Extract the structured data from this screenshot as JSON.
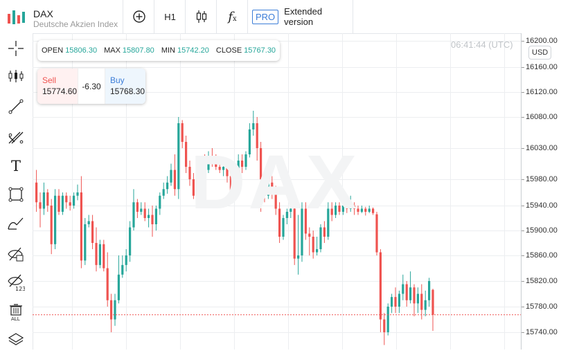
{
  "header": {
    "symbol": "DAX",
    "name": "Deutsche Akzien Index",
    "timeframe": "H1",
    "pro_badge": "PRO",
    "extended_label": "Extended version"
  },
  "ohlc": {
    "open_label": "OPEN",
    "open": "15806.30",
    "max_label": "MAX",
    "max": "15807.80",
    "min_label": "MIN",
    "min": "15742.20",
    "close_label": "CLOSE",
    "close": "15767.30"
  },
  "trade": {
    "sell_label": "Sell",
    "sell_price": "15774.60",
    "spread": "-6.30",
    "buy_label": "Buy",
    "buy_price": "15768.30"
  },
  "time": "06:41:44 (UTC)",
  "currency": "USD",
  "watermark": "DAX",
  "icons": [
    "crosshair-icon",
    "indicators-icon",
    "trend-line-icon",
    "fib-tool-icon",
    "text-icon",
    "rectangle-icon",
    "brush-icon",
    "hide-drawings-icon",
    "hide-values-icon",
    "delete-all-icon",
    "layers-icon"
  ],
  "colors": {
    "up": "#26a69a",
    "down": "#ef5350",
    "accent": "#3b7dd8",
    "last_price": "#ef5350"
  },
  "chart_data": {
    "type": "candlestick",
    "yticks": [
      16200,
      16160,
      16120,
      16080,
      16030,
      15980,
      15940,
      15900,
      15860,
      15820,
      15780,
      15740
    ],
    "ytick_labels": [
      "16200.00",
      "16160.00",
      "16120.00",
      "16080.00",
      "16030.00",
      "15980.00",
      "15940.00",
      "15900.00",
      "15860.00",
      "15820.00",
      "15780.00",
      "15740.00"
    ],
    "ylim": [
      15730,
      16205
    ],
    "grid": true,
    "last_price": 15767.3,
    "candles": [
      [
        15975,
        15945,
        15995,
        15930
      ],
      [
        15945,
        15935,
        15960,
        15905
      ],
      [
        15935,
        15960,
        15975,
        15925
      ],
      [
        15960,
        15940,
        15965,
        15930
      ],
      [
        15940,
        15878,
        15950,
        15862
      ],
      [
        15878,
        15955,
        15965,
        15870
      ],
      [
        15955,
        15930,
        15965,
        15925
      ],
      [
        15930,
        15955,
        15960,
        15925
      ],
      [
        15955,
        15945,
        15960,
        15935
      ],
      [
        15945,
        15940,
        15955,
        15932
      ],
      [
        15940,
        15955,
        15960,
        15935
      ],
      [
        15955,
        15960,
        15972,
        15948
      ],
      [
        15960,
        15852,
        15985,
        15840
      ],
      [
        15852,
        15910,
        15920,
        15845
      ],
      [
        15910,
        15915,
        15925,
        15905
      ],
      [
        15915,
        15880,
        15925,
        15870
      ],
      [
        15880,
        15845,
        15905,
        15835
      ],
      [
        15845,
        15878,
        15885,
        15840
      ],
      [
        15878,
        15840,
        15885,
        15835
      ],
      [
        15840,
        15790,
        15865,
        15780
      ],
      [
        15790,
        15760,
        15800,
        15740
      ],
      [
        15760,
        15790,
        15800,
        15750
      ],
      [
        15790,
        15830,
        15860,
        15785
      ],
      [
        15830,
        15845,
        15860,
        15825
      ],
      [
        15845,
        15860,
        15870,
        15835
      ],
      [
        15860,
        15905,
        15915,
        15850
      ],
      [
        15905,
        15945,
        15965,
        15900
      ],
      [
        15945,
        15930,
        15950,
        15920
      ],
      [
        15930,
        15935,
        15945,
        15925
      ],
      [
        15935,
        15920,
        15945,
        15915
      ],
      [
        15920,
        15925,
        15935,
        15905
      ],
      [
        15925,
        15910,
        15940,
        15890
      ],
      [
        15910,
        15935,
        15940,
        15900
      ],
      [
        15935,
        15955,
        15960,
        15925
      ],
      [
        15955,
        15965,
        15975,
        15950
      ],
      [
        15965,
        15975,
        15985,
        15958
      ],
      [
        15975,
        15995,
        16005,
        15970
      ],
      [
        15995,
        15965,
        16020,
        15955
      ],
      [
        15965,
        16070,
        16080,
        15950
      ],
      [
        16070,
        16040,
        16075,
        16030
      ],
      [
        16040,
        16000,
        16050,
        15990
      ],
      [
        16000,
        15980,
        16010,
        15970
      ],
      [
        15980,
        15955,
        15990,
        15950
      ],
      [
        15955,
        15985,
        15995,
        15950
      ],
      [
        15985,
        16005,
        16015,
        15980
      ],
      [
        16005,
        15995,
        16020,
        15990
      ],
      [
        15995,
        16015,
        16025,
        15990
      ],
      [
        16015,
        16005,
        16030,
        16000
      ],
      [
        16005,
        16000,
        16020,
        15995
      ],
      [
        16000,
        15995,
        16015,
        15990
      ],
      [
        15995,
        16000,
        16010,
        15985
      ],
      [
        16000,
        15985,
        16005,
        15975
      ],
      [
        15985,
        15960,
        15990,
        15950
      ],
      [
        15960,
        15985,
        15990,
        15955
      ],
      [
        15985,
        16010,
        16020,
        15980
      ],
      [
        16010,
        16000,
        16020,
        15990
      ],
      [
        16000,
        16020,
        16025,
        15995
      ],
      [
        16020,
        16060,
        16070,
        16015
      ],
      [
        16060,
        16070,
        16090,
        16050
      ],
      [
        16070,
        16030,
        16080,
        16010
      ],
      [
        16030,
        15980,
        16040,
        15930
      ],
      [
        15980,
        15955,
        15990,
        15945
      ],
      [
        15955,
        15975,
        15985,
        15950
      ],
      [
        15975,
        15960,
        15985,
        15950
      ],
      [
        15960,
        15935,
        15970,
        15925
      ],
      [
        15935,
        15890,
        15945,
        15880
      ],
      [
        15890,
        15920,
        15925,
        15885
      ],
      [
        15920,
        15930,
        15935,
        15910
      ],
      [
        15930,
        15935,
        15945,
        15920
      ],
      [
        15935,
        15855,
        15945,
        15845
      ],
      [
        15855,
        15860,
        15925,
        15830
      ],
      [
        15860,
        15935,
        15945,
        15850
      ],
      [
        15935,
        15895,
        15945,
        15885
      ],
      [
        15895,
        15890,
        15905,
        15860
      ],
      [
        15890,
        15865,
        15900,
        15855
      ],
      [
        15865,
        15870,
        15890,
        15860
      ],
      [
        15870,
        15905,
        15910,
        15865
      ],
      [
        15905,
        15890,
        15915,
        15880
      ],
      [
        15890,
        15935,
        15945,
        15885
      ],
      [
        15935,
        15925,
        15945,
        15915
      ],
      [
        15925,
        15940,
        15945,
        15920
      ],
      [
        15940,
        15930,
        15945,
        15925
      ],
      [
        15930,
        15940,
        15950,
        15925
      ],
      [
        15940,
        15935,
        15945,
        15928
      ],
      [
        15935,
        15940,
        15955,
        15930
      ],
      [
        15940,
        15935,
        15945,
        15925
      ],
      [
        15935,
        15930,
        15940,
        15925
      ],
      [
        15930,
        15935,
        15940,
        15928
      ],
      [
        15935,
        15930,
        15938,
        15924
      ],
      [
        15930,
        15935,
        15940,
        15928
      ],
      [
        15935,
        15928,
        15937,
        15925
      ],
      [
        15926,
        15865,
        15930,
        15860
      ],
      [
        15865,
        15760,
        15870,
        15740
      ],
      [
        15760,
        15740,
        15770,
        15720
      ],
      [
        15740,
        15780,
        15785,
        15735
      ],
      [
        15780,
        15795,
        15800,
        15770
      ],
      [
        15795,
        15780,
        15810,
        15770
      ],
      [
        15780,
        15800,
        15805,
        15770
      ],
      [
        15800,
        15815,
        15830,
        15790
      ],
      [
        15815,
        15790,
        15820,
        15780
      ],
      [
        15790,
        15810,
        15835,
        15785
      ],
      [
        15810,
        15785,
        15815,
        15765
      ],
      [
        15785,
        15800,
        15810,
        15770
      ],
      [
        15800,
        15775,
        15815,
        15760
      ],
      [
        15775,
        15790,
        15805,
        15765
      ],
      [
        15790,
        15820,
        15825,
        15780
      ],
      [
        15806.3,
        15767.3,
        15807.8,
        15742.2
      ]
    ]
  }
}
